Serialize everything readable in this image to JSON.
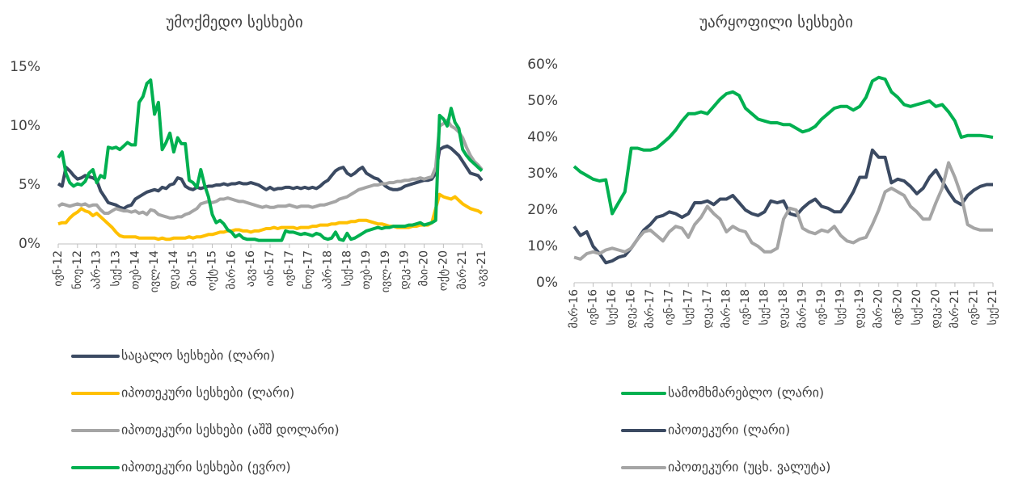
{
  "chart_data": [
    {
      "type": "line",
      "title": "უმოქმედო  სესხები",
      "categories": [
        "ივნ-12",
        null,
        null,
        null,
        null,
        "ნოე-12",
        null,
        null,
        null,
        null,
        "აპრ-13",
        null,
        null,
        null,
        null,
        "სექ-13",
        null,
        null,
        null,
        null,
        "თებ-14",
        null,
        null,
        null,
        null,
        "ივლ-14",
        null,
        null,
        null,
        null,
        "დეკ-14",
        null,
        null,
        null,
        null,
        "მაი-15",
        null,
        null,
        null,
        null,
        "ოქტ-15",
        null,
        null,
        null,
        null,
        "მარ-16",
        null,
        null,
        null,
        null,
        "აგვ-16",
        null,
        null,
        null,
        null,
        "იან-17",
        null,
        null,
        null,
        null,
        "ივნ-17",
        null,
        null,
        null,
        null,
        "ნოე-17",
        null,
        null,
        null,
        null,
        "აპრ-18",
        null,
        null,
        null,
        null,
        "სექ-18",
        null,
        null,
        null,
        null,
        "თებ-19",
        null,
        null,
        null,
        null,
        "ივლ-19",
        null,
        null,
        null,
        null,
        "დეკ-19",
        null,
        null,
        null,
        null,
        "მაი-20",
        null,
        null,
        null,
        null,
        "ოქტ-20",
        null,
        null,
        null,
        null,
        "მარ-21",
        null,
        null,
        null,
        null,
        "აგვ-21"
      ],
      "ylim": [
        0,
        15
      ],
      "yticks": [
        {
          "value": 0,
          "label": "0%"
        },
        {
          "value": 5,
          "label": "5%"
        },
        {
          "value": 10,
          "label": "10%"
        },
        {
          "value": 15,
          "label": "15%"
        }
      ],
      "grid": false,
      "legend": "bottom",
      "series": [
        {
          "name": "საცალო სესხები (ლარი)",
          "color": "#3b4a62",
          "values": [
            5.1,
            4.9,
            6.5,
            6.2,
            5.8,
            5.5,
            5.6,
            5.8,
            5.7,
            5.6,
            5.4,
            4.5,
            4.0,
            3.5,
            3.4,
            3.3,
            3.1,
            3.0,
            3.2,
            3.3,
            3.8,
            4.0,
            4.2,
            4.4,
            4.5,
            4.6,
            4.5,
            4.8,
            4.7,
            5.0,
            5.1,
            5.6,
            5.5,
            4.9,
            4.7,
            4.6,
            4.8,
            4.7,
            4.8,
            4.9,
            4.9,
            5.0,
            5.0,
            5.1,
            5.0,
            5.1,
            5.1,
            5.2,
            5.1,
            5.1,
            5.2,
            5.1,
            5.0,
            4.8,
            4.6,
            4.8,
            4.6,
            4.7,
            4.7,
            4.8,
            4.8,
            4.7,
            4.8,
            4.7,
            4.8,
            4.7,
            4.8,
            4.7,
            4.9,
            5.2,
            5.4,
            5.8,
            6.2,
            6.4,
            6.5,
            6.0,
            5.8,
            6.0,
            6.3,
            6.5,
            6.0,
            5.8,
            5.6,
            5.5,
            5.2,
            4.9,
            4.7,
            4.6,
            4.6,
            4.7,
            4.9,
            5.0,
            5.1,
            5.2,
            5.3,
            5.4,
            5.4,
            5.5,
            6.0,
            8.0,
            8.2,
            8.3,
            8.1,
            7.8,
            7.5,
            7.0,
            6.5,
            6.0,
            5.9,
            5.8,
            5.4
          ]
        },
        {
          "name": "იპოთეკური სესხები (ლარი)",
          "color": "#ffc000",
          "values": [
            1.7,
            1.8,
            1.8,
            2.2,
            2.5,
            2.7,
            3.0,
            2.8,
            2.7,
            2.4,
            2.6,
            2.3,
            2.0,
            1.7,
            1.4,
            1.0,
            0.7,
            0.6,
            0.6,
            0.6,
            0.6,
            0.5,
            0.5,
            0.5,
            0.5,
            0.5,
            0.4,
            0.5,
            0.4,
            0.4,
            0.5,
            0.5,
            0.5,
            0.5,
            0.6,
            0.5,
            0.6,
            0.6,
            0.7,
            0.8,
            0.8,
            0.9,
            1.0,
            1.0,
            1.1,
            1.1,
            1.2,
            1.2,
            1.1,
            1.1,
            1.0,
            1.1,
            1.1,
            1.2,
            1.3,
            1.3,
            1.4,
            1.3,
            1.4,
            1.4,
            1.4,
            1.4,
            1.3,
            1.4,
            1.4,
            1.4,
            1.5,
            1.5,
            1.6,
            1.6,
            1.6,
            1.7,
            1.7,
            1.8,
            1.8,
            1.8,
            1.9,
            1.9,
            2.0,
            2.0,
            2.0,
            1.9,
            1.8,
            1.7,
            1.7,
            1.6,
            1.5,
            1.5,
            1.4,
            1.4,
            1.4,
            1.4,
            1.5,
            1.5,
            1.6,
            1.6,
            1.6,
            1.8,
            3.0,
            4.2,
            4.0,
            3.9,
            3.8,
            4.0,
            3.7,
            3.4,
            3.2,
            3.0,
            2.9,
            2.8,
            2.6
          ]
        },
        {
          "name": "იპოთეკური სესხები (აშშ დოლარი)",
          "color": "#a5a5a5",
          "values": [
            3.2,
            3.4,
            3.3,
            3.2,
            3.3,
            3.4,
            3.3,
            3.4,
            3.2,
            3.3,
            3.3,
            2.9,
            2.6,
            2.6,
            2.8,
            3.0,
            2.9,
            2.8,
            2.8,
            2.7,
            2.8,
            2.6,
            2.7,
            2.5,
            2.9,
            2.8,
            2.5,
            2.4,
            2.3,
            2.2,
            2.2,
            2.3,
            2.3,
            2.5,
            2.6,
            2.8,
            3.0,
            3.4,
            3.5,
            3.6,
            3.5,
            3.6,
            3.8,
            3.8,
            3.9,
            3.8,
            3.7,
            3.6,
            3.6,
            3.5,
            3.4,
            3.3,
            3.2,
            3.1,
            3.2,
            3.1,
            3.1,
            3.2,
            3.2,
            3.2,
            3.3,
            3.2,
            3.1,
            3.2,
            3.2,
            3.2,
            3.1,
            3.2,
            3.3,
            3.3,
            3.4,
            3.5,
            3.6,
            3.8,
            3.9,
            4.0,
            4.2,
            4.4,
            4.6,
            4.7,
            4.8,
            4.9,
            5.0,
            5.0,
            5.1,
            5.1,
            5.2,
            5.2,
            5.3,
            5.3,
            5.4,
            5.4,
            5.5,
            5.5,
            5.6,
            5.5,
            5.6,
            5.7,
            6.5,
            10.0,
            10.2,
            10.5,
            10.0,
            9.8,
            9.5,
            9.0,
            8.2,
            7.5,
            7.0,
            6.7,
            6.3
          ]
        },
        {
          "name": "იპოთეკური სესხები (ევრო)",
          "color": "#00b050",
          "values": [
            7.3,
            7.8,
            6.0,
            5.2,
            4.9,
            5.1,
            5.0,
            5.3,
            6.0,
            6.3,
            5.2,
            5.8,
            5.6,
            8.2,
            8.1,
            8.2,
            8.0,
            8.3,
            8.6,
            8.4,
            8.4,
            12.0,
            12.5,
            13.6,
            13.9,
            11.0,
            12.0,
            8.0,
            8.6,
            9.4,
            7.8,
            9.0,
            8.5,
            8.5,
            5.4,
            5.2,
            4.8,
            6.3,
            5.0,
            4.0,
            2.5,
            1.8,
            2.0,
            1.7,
            1.2,
            1.0,
            0.6,
            0.8,
            0.5,
            0.4,
            0.4,
            0.4,
            0.3,
            0.3,
            0.3,
            0.3,
            0.3,
            0.3,
            0.3,
            1.1,
            1.0,
            1.0,
            0.9,
            0.8,
            0.9,
            0.8,
            0.7,
            0.9,
            0.8,
            0.5,
            0.4,
            0.5,
            1.0,
            0.4,
            0.3,
            0.9,
            0.4,
            0.5,
            0.7,
            0.9,
            1.1,
            1.2,
            1.3,
            1.4,
            1.3,
            1.4,
            1.4,
            1.5,
            1.5,
            1.5,
            1.5,
            1.6,
            1.6,
            1.7,
            1.8,
            1.6,
            1.7,
            1.8,
            2.0,
            10.9,
            10.6,
            10.0,
            11.5,
            10.3,
            9.8,
            8.0,
            7.5,
            7.1,
            6.8,
            6.5,
            6.2
          ]
        }
      ]
    },
    {
      "type": "line",
      "title": "უარყოფილი სესხები",
      "categories": [
        "მარ-16",
        null,
        null,
        "ივნ-16",
        null,
        null,
        "სექ-16",
        null,
        null,
        "დეკ-16",
        null,
        null,
        "მარ-17",
        null,
        null,
        "ივნ-17",
        null,
        null,
        "სექ-17",
        null,
        null,
        "დეკ-17",
        null,
        null,
        "მარ-18",
        null,
        null,
        "ივნ-18",
        null,
        null,
        "სექ-18",
        null,
        null,
        "დეკ-18",
        null,
        null,
        "მარ-19",
        null,
        null,
        "ივნ-19",
        null,
        null,
        "სექ-19",
        null,
        null,
        "დეკ-19",
        null,
        null,
        "მარ-20",
        null,
        null,
        "ივნ-20",
        null,
        null,
        "სექ-20",
        null,
        null,
        "დეკ-20",
        null,
        null,
        "მარ-21",
        null,
        null,
        "ივნ-21",
        null,
        null,
        "სექ-21"
      ],
      "ylim": [
        0,
        60
      ],
      "yticks": [
        {
          "value": 0,
          "label": "0%"
        },
        {
          "value": 10,
          "label": "10%"
        },
        {
          "value": 20,
          "label": "20%"
        },
        {
          "value": 30,
          "label": "30%"
        },
        {
          "value": 40,
          "label": "40%"
        },
        {
          "value": 50,
          "label": "50%"
        },
        {
          "value": 60,
          "label": "60%"
        }
      ],
      "grid": false,
      "legend": "bottom",
      "series": [
        {
          "name": "სამომხმარებლო (ლარი)",
          "color": "#00b050",
          "values": [
            32,
            30.5,
            29.5,
            28.5,
            28,
            28.3,
            19,
            22,
            25,
            37,
            37,
            36.5,
            36.5,
            37,
            38.5,
            40,
            42,
            44.5,
            46.5,
            46.5,
            47,
            46.5,
            48.5,
            50.5,
            52,
            52.5,
            51.5,
            48,
            46.5,
            45,
            44.5,
            44,
            44,
            43.5,
            43.5,
            42.5,
            41.5,
            42,
            43,
            45,
            46.5,
            48,
            48.5,
            48.5,
            47.5,
            48.5,
            51,
            55.5,
            56.5,
            56,
            52.5,
            51,
            49,
            48.5,
            49,
            49.5,
            50,
            48.5,
            49,
            47,
            44.5,
            40,
            40.5,
            40.5,
            40.5,
            40.3,
            40
          ]
        },
        {
          "name": "იპოთეკური (ლარი)",
          "color": "#3b4a62",
          "values": [
            15.5,
            13,
            14,
            10,
            8,
            5.5,
            6,
            7,
            7.5,
            9.5,
            12,
            14.5,
            16,
            18,
            18.5,
            19.5,
            19,
            18,
            19,
            22,
            22,
            22.5,
            21.5,
            23,
            23,
            24,
            22,
            20,
            19,
            18.5,
            19.5,
            22.5,
            22,
            22.5,
            19,
            18.5,
            20.5,
            22,
            23,
            21,
            20.5,
            19.5,
            19.5,
            22,
            25,
            29,
            29,
            36.5,
            34.5,
            34.5,
            27.5,
            28.5,
            28,
            26.5,
            24.5,
            26,
            29,
            31,
            28,
            25,
            22.5,
            21.5,
            24,
            25.5,
            26.5,
            27,
            27
          ]
        },
        {
          "name": "იპოთეკური (უცხ. ვალუტა)",
          "color": "#a5a5a5",
          "values": [
            7,
            6.5,
            8,
            8.5,
            8,
            9,
            9.5,
            9,
            8.5,
            9.5,
            12,
            14,
            14.5,
            13,
            11.5,
            14,
            15.5,
            15,
            12.5,
            16,
            18,
            21,
            19,
            17.5,
            14,
            15.5,
            14.5,
            14,
            11,
            10,
            8.5,
            8.5,
            9.5,
            17.5,
            20.5,
            20,
            15,
            14,
            13.5,
            14.5,
            14,
            15.5,
            13,
            11.5,
            11,
            12,
            12.5,
            16,
            20,
            25,
            26,
            25,
            24,
            21,
            19.5,
            17.5,
            17.5,
            22,
            26,
            33,
            29,
            24,
            16,
            15,
            14.5,
            14.5,
            14.5
          ]
        }
      ]
    }
  ]
}
